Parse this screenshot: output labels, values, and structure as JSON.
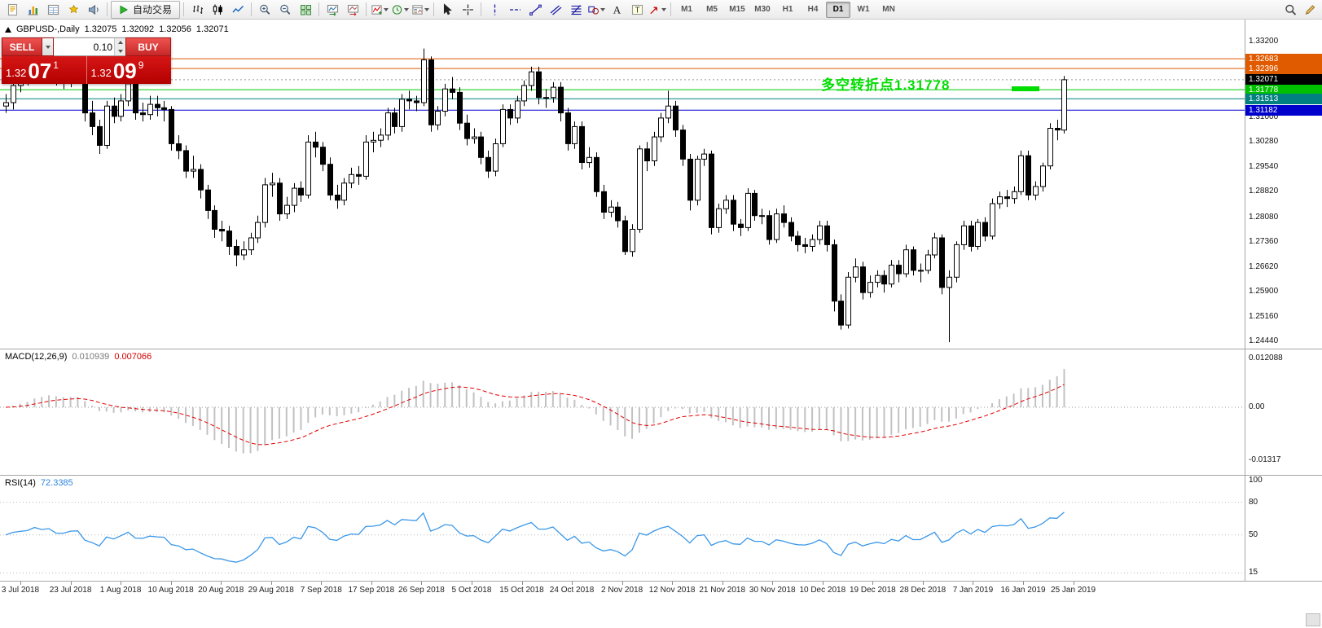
{
  "toolbar": {
    "groups": [
      {
        "items": [
          {
            "name": "new-order-icon",
            "icon": "neworder"
          },
          {
            "name": "market-watch-icon",
            "icon": "marketwatch"
          },
          {
            "name": "data-window-icon",
            "icon": "datawindow"
          },
          {
            "name": "navigator-icon",
            "icon": "navigator"
          },
          {
            "name": "terminal-icon",
            "icon": "terminal"
          }
        ]
      },
      {
        "items": [
          {
            "name": "auto-trading-button",
            "icon": "play",
            "label": "自动交易"
          }
        ]
      },
      {
        "items": [
          {
            "name": "bar-chart-icon",
            "icon": "bars"
          },
          {
            "name": "candlestick-chart-icon",
            "icon": "candles"
          },
          {
            "name": "line-chart-icon",
            "icon": "linechart"
          }
        ]
      },
      {
        "items": [
          {
            "name": "zoom-in-icon",
            "icon": "zoomin"
          },
          {
            "name": "zoom-out-icon",
            "icon": "zoomout"
          },
          {
            "name": "tile-windows-icon",
            "icon": "grid"
          }
        ]
      },
      {
        "items": [
          {
            "name": "auto-scroll-icon",
            "icon": "autoscroll"
          },
          {
            "name": "chart-shift-icon",
            "icon": "shift"
          }
        ]
      },
      {
        "items": [
          {
            "name": "indicators-icon",
            "icon": "indicators",
            "dd": true
          },
          {
            "name": "periods-clock-icon",
            "icon": "clock",
            "dd": true
          },
          {
            "name": "templates-icon",
            "icon": "templates",
            "dd": true
          }
        ]
      },
      {
        "items": [
          {
            "name": "cursor-icon",
            "icon": "cursor"
          },
          {
            "name": "crosshair-icon",
            "icon": "crosshair"
          }
        ]
      },
      {
        "items": [
          {
            "name": "vertical-line-icon",
            "icon": "vline"
          },
          {
            "name": "horizontal-line-icon",
            "icon": "hline"
          },
          {
            "name": "trendline-icon",
            "icon": "trendline"
          },
          {
            "name": "channel-icon",
            "icon": "channel"
          },
          {
            "name": "fibonacci-icon",
            "icon": "fibo"
          },
          {
            "name": "shapes-icon",
            "icon": "shapes",
            "dd": true
          },
          {
            "name": "text-icon",
            "icon": "texta"
          },
          {
            "name": "text-label-icon",
            "icon": "textlabel"
          },
          {
            "name": "arrows-icon",
            "icon": "arrows",
            "dd": true
          }
        ]
      }
    ],
    "timeframes": [
      "M1",
      "M5",
      "M15",
      "M30",
      "H1",
      "H4",
      "D1",
      "W1",
      "MN"
    ],
    "active_timeframe": "D1",
    "right_items": [
      {
        "name": "search-icon",
        "icon": "search"
      },
      {
        "name": "edit-icon",
        "icon": "edit"
      }
    ]
  },
  "chart": {
    "title": {
      "symbol_period": "GBPUSD-,Daily",
      "open": "1.32075",
      "high": "1.32092",
      "low": "1.32056",
      "close": "1.32071"
    },
    "annotation": {
      "text": "多空转折点1.31778",
      "color": "#00dd00"
    },
    "axis_labels": [
      "1.33200",
      "1.31000",
      "1.30280",
      "1.29540",
      "1.28820",
      "1.28080",
      "1.27360",
      "1.26620",
      "1.25900",
      "1.25160",
      "1.24440"
    ],
    "price_tags": [
      {
        "price": 1.32683,
        "label": "1.32683",
        "color": "#e05a00"
      },
      {
        "price": 1.32396,
        "label": "1.32396",
        "color": "#e05a00"
      },
      {
        "price": 1.32071,
        "label": "1.32071",
        "color": "#000000"
      },
      {
        "price": 1.31778,
        "label": "1.31778",
        "color": "#00c000"
      },
      {
        "price": 1.31513,
        "label": "1.31513",
        "color": "#008080"
      },
      {
        "price": 1.31182,
        "label": "1.31182",
        "color": "#0000cd"
      }
    ],
    "hlines": [
      {
        "price": 1.32683,
        "color": "#e05a00",
        "style": "solid"
      },
      {
        "price": 1.32396,
        "color": "#e05a00",
        "style": "solid"
      },
      {
        "price": 1.32071,
        "color": "#999999",
        "style": "dotted"
      },
      {
        "price": 1.31778,
        "color": "#00cc00",
        "style": "solid"
      },
      {
        "price": 1.31513,
        "color": "#008080",
        "style": "solid"
      },
      {
        "price": 1.31182,
        "color": "#0000cd",
        "style": "solid"
      }
    ]
  },
  "trade_panel": {
    "sell_label": "SELL",
    "buy_label": "BUY",
    "lot_value": "0.10",
    "sell_price_prefix": "1.32",
    "sell_price_big": "07",
    "sell_price_sup": "1",
    "buy_price_prefix": "1.32",
    "buy_price_big": "09",
    "buy_price_sup": "9"
  },
  "macd": {
    "label": "MACD(12,26,9)",
    "main_value": "0.010939",
    "signal_value": "0.007066",
    "axis_labels": [
      "0.012088",
      "0.00",
      "-0.01317"
    ]
  },
  "rsi": {
    "label": "RSI(14)",
    "value": "72.3385",
    "axis_labels": [
      "100",
      "80",
      "50",
      "15"
    ],
    "levels": [
      80,
      50,
      15
    ]
  },
  "dates": [
    "3 Jul 2018",
    "23 Jul 2018",
    "1 Aug 2018",
    "10 Aug 2018",
    "20 Aug 2018",
    "29 Aug 2018",
    "7 Sep 2018",
    "17 Sep 2018",
    "26 Sep 2018",
    "5 Oct 2018",
    "15 Oct 2018",
    "24 Oct 2018",
    "2 Nov 2018",
    "12 Nov 2018",
    "21 Nov 2018",
    "30 Nov 2018",
    "10 Dec 2018",
    "19 Dec 2018",
    "28 Dec 2018",
    "7 Jan 2019",
    "16 Jan 2019",
    "25 Jan 2019"
  ],
  "chart_data": {
    "type": "candlestick",
    "symbol": "GBPUSD-",
    "period": "Daily",
    "ohlc_header": {
      "open": 1.32075,
      "high": 1.32092,
      "low": 1.32056,
      "close": 1.32071
    },
    "price_range_shown": [
      1.2444,
      1.332
    ],
    "indicators": [
      {
        "name": "MACD",
        "params": "12,26,9",
        "values_shown": [
          0.010939,
          0.007066
        ],
        "axis_range": [
          -0.01317,
          0.012088
        ]
      },
      {
        "name": "RSI",
        "params": "14",
        "value_shown": 72.3385,
        "levels": [
          80,
          50,
          15
        ]
      }
    ],
    "candles": [
      [
        1.313,
        1.3165,
        1.311,
        1.314
      ],
      [
        1.314,
        1.3205,
        1.312,
        1.319
      ],
      [
        1.319,
        1.324,
        1.317,
        1.321
      ],
      [
        1.321,
        1.325,
        1.319,
        1.3225
      ],
      [
        1.3225,
        1.3315,
        1.3205,
        1.3285
      ],
      [
        1.3285,
        1.33,
        1.3235,
        1.3255
      ],
      [
        1.3255,
        1.3295,
        1.324,
        1.327
      ],
      [
        1.327,
        1.3285,
        1.319,
        1.3205
      ],
      [
        1.3205,
        1.324,
        1.318,
        1.3205
      ],
      [
        1.3205,
        1.326,
        1.3185,
        1.3235
      ],
      [
        1.3235,
        1.327,
        1.3215,
        1.324
      ],
      [
        1.324,
        1.3255,
        1.3085,
        1.311
      ],
      [
        1.311,
        1.3145,
        1.3045,
        1.307
      ],
      [
        1.307,
        1.309,
        1.299,
        1.3015
      ],
      [
        1.3015,
        1.3145,
        1.3005,
        1.313
      ],
      [
        1.313,
        1.3155,
        1.308,
        1.31
      ],
      [
        1.31,
        1.3165,
        1.3085,
        1.3145
      ],
      [
        1.3145,
        1.3215,
        1.313,
        1.3195
      ],
      [
        1.3195,
        1.3215,
        1.309,
        1.311
      ],
      [
        1.311,
        1.314,
        1.3085,
        1.3105
      ],
      [
        1.3105,
        1.316,
        1.309,
        1.3135
      ],
      [
        1.3135,
        1.316,
        1.31,
        1.3125
      ],
      [
        1.3125,
        1.3145,
        1.3085,
        1.312
      ],
      [
        1.312,
        1.313,
        1.3,
        1.302
      ],
      [
        1.302,
        1.3045,
        1.2975,
        1.3
      ],
      [
        1.3,
        1.3015,
        1.292,
        1.294
      ],
      [
        1.294,
        1.2985,
        1.292,
        1.2945
      ],
      [
        1.2945,
        1.296,
        1.286,
        1.2885
      ],
      [
        1.2885,
        1.29,
        1.28,
        1.2825
      ],
      [
        1.2825,
        1.284,
        1.2745,
        1.277
      ],
      [
        1.277,
        1.2795,
        1.2735,
        1.2765
      ],
      [
        1.2765,
        1.278,
        1.2695,
        1.272
      ],
      [
        1.272,
        1.274,
        1.2662,
        1.2695
      ],
      [
        1.2695,
        1.2735,
        1.268,
        1.271
      ],
      [
        1.271,
        1.276,
        1.2695,
        1.2745
      ],
      [
        1.2745,
        1.281,
        1.273,
        1.279
      ],
      [
        1.279,
        1.292,
        1.2775,
        1.29
      ],
      [
        1.29,
        1.2935,
        1.2865,
        1.2905
      ],
      [
        1.2905,
        1.292,
        1.2795,
        1.2815
      ],
      [
        1.2815,
        1.2865,
        1.28,
        1.284
      ],
      [
        1.284,
        1.2905,
        1.282,
        1.289
      ],
      [
        1.289,
        1.291,
        1.285,
        1.287
      ],
      [
        1.287,
        1.3045,
        1.286,
        1.3025
      ],
      [
        1.3025,
        1.3055,
        1.298,
        1.301
      ],
      [
        1.301,
        1.3025,
        1.294,
        1.296
      ],
      [
        1.296,
        1.298,
        1.2855,
        1.287
      ],
      [
        1.287,
        1.29,
        1.283,
        1.2855
      ],
      [
        1.2855,
        1.292,
        1.284,
        1.2905
      ],
      [
        1.2905,
        1.295,
        1.289,
        1.293
      ],
      [
        1.293,
        1.2955,
        1.29,
        1.2925
      ],
      [
        1.2925,
        1.3045,
        1.2915,
        1.3025
      ],
      [
        1.3025,
        1.3055,
        1.2995,
        1.303
      ],
      [
        1.303,
        1.3065,
        1.301,
        1.3045
      ],
      [
        1.3045,
        1.3125,
        1.303,
        1.311
      ],
      [
        1.311,
        1.3125,
        1.305,
        1.307
      ],
      [
        1.307,
        1.3165,
        1.3055,
        1.315
      ],
      [
        1.315,
        1.3175,
        1.312,
        1.3145
      ],
      [
        1.3145,
        1.316,
        1.3115,
        1.314
      ],
      [
        1.314,
        1.3298,
        1.313,
        1.3265
      ],
      [
        1.3265,
        1.3275,
        1.3055,
        1.3075
      ],
      [
        1.3075,
        1.313,
        1.306,
        1.3115
      ],
      [
        1.3115,
        1.3195,
        1.31,
        1.318
      ],
      [
        1.318,
        1.3215,
        1.315,
        1.317
      ],
      [
        1.317,
        1.3185,
        1.306,
        1.308
      ],
      [
        1.308,
        1.3105,
        1.3015,
        1.3035
      ],
      [
        1.3035,
        1.3065,
        1.302,
        1.304
      ],
      [
        1.304,
        1.3055,
        1.296,
        1.298
      ],
      [
        1.298,
        1.3,
        1.292,
        1.294
      ],
      [
        1.294,
        1.3035,
        1.2925,
        1.302
      ],
      [
        1.302,
        1.3135,
        1.301,
        1.312
      ],
      [
        1.312,
        1.3135,
        1.3075,
        1.3095
      ],
      [
        1.3095,
        1.316,
        1.308,
        1.3145
      ],
      [
        1.3145,
        1.3205,
        1.313,
        1.319
      ],
      [
        1.319,
        1.3245,
        1.3175,
        1.323
      ],
      [
        1.323,
        1.3245,
        1.3135,
        1.3155
      ],
      [
        1.3155,
        1.318,
        1.3125,
        1.3155
      ],
      [
        1.3155,
        1.32,
        1.314,
        1.3185
      ],
      [
        1.3185,
        1.32,
        1.3085,
        1.311
      ],
      [
        1.311,
        1.3125,
        1.3,
        1.302
      ],
      [
        1.302,
        1.3085,
        1.3005,
        1.307
      ],
      [
        1.307,
        1.3085,
        1.2945,
        1.2965
      ],
      [
        1.2965,
        1.301,
        1.295,
        1.298
      ],
      [
        1.298,
        1.2995,
        1.2865,
        1.288
      ],
      [
        1.288,
        1.29,
        1.28,
        1.282
      ],
      [
        1.282,
        1.2855,
        1.2805,
        1.2835
      ],
      [
        1.2835,
        1.285,
        1.2775,
        1.2795
      ],
      [
        1.2795,
        1.281,
        1.2695,
        1.2705
      ],
      [
        1.2705,
        1.2785,
        1.269,
        1.277
      ],
      [
        1.277,
        1.3015,
        1.276,
        1.3005
      ],
      [
        1.3005,
        1.3025,
        1.294,
        1.297
      ],
      [
        1.297,
        1.3055,
        1.2955,
        1.304
      ],
      [
        1.304,
        1.311,
        1.3025,
        1.3095
      ],
      [
        1.3095,
        1.3175,
        1.308,
        1.313
      ],
      [
        1.313,
        1.3145,
        1.304,
        1.306
      ],
      [
        1.306,
        1.3075,
        1.2955,
        1.2975
      ],
      [
        1.2975,
        1.299,
        1.2825,
        1.2855
      ],
      [
        1.2855,
        1.2985,
        1.284,
        1.2975
      ],
      [
        1.2975,
        1.3005,
        1.2955,
        1.299
      ],
      [
        1.299,
        1.3,
        1.2755,
        1.2775
      ],
      [
        1.2775,
        1.2845,
        1.276,
        1.283
      ],
      [
        1.283,
        1.287,
        1.2815,
        1.2855
      ],
      [
        1.2855,
        1.287,
        1.2765,
        1.2785
      ],
      [
        1.2785,
        1.28,
        1.275,
        1.2775
      ],
      [
        1.2775,
        1.289,
        1.2765,
        1.2875
      ],
      [
        1.2875,
        1.2885,
        1.2795,
        1.281
      ],
      [
        1.281,
        1.283,
        1.2785,
        1.281
      ],
      [
        1.281,
        1.2825,
        1.2725,
        1.274
      ],
      [
        1.274,
        1.283,
        1.273,
        1.2815
      ],
      [
        1.2815,
        1.284,
        1.2775,
        1.279
      ],
      [
        1.279,
        1.2805,
        1.2735,
        1.275
      ],
      [
        1.275,
        1.2765,
        1.2705,
        1.2725
      ],
      [
        1.2725,
        1.2745,
        1.27,
        1.272
      ],
      [
        1.272,
        1.2755,
        1.2705,
        1.274
      ],
      [
        1.274,
        1.2795,
        1.2725,
        1.278
      ],
      [
        1.278,
        1.2795,
        1.2705,
        1.2725
      ],
      [
        1.2725,
        1.274,
        1.253,
        1.256
      ],
      [
        1.256,
        1.258,
        1.2477,
        1.249
      ],
      [
        1.249,
        1.2645,
        1.248,
        1.263
      ],
      [
        1.263,
        1.2685,
        1.2615,
        1.266
      ],
      [
        1.266,
        1.2675,
        1.2565,
        1.2585
      ],
      [
        1.2585,
        1.2635,
        1.257,
        1.2615
      ],
      [
        1.2615,
        1.265,
        1.26,
        1.2635
      ],
      [
        1.2635,
        1.265,
        1.2585,
        1.261
      ],
      [
        1.261,
        1.268,
        1.26,
        1.2665
      ],
      [
        1.2665,
        1.268,
        1.2615,
        1.264
      ],
      [
        1.264,
        1.2725,
        1.263,
        1.271
      ],
      [
        1.271,
        1.272,
        1.2635,
        1.265
      ],
      [
        1.265,
        1.267,
        1.2615,
        1.265
      ],
      [
        1.265,
        1.271,
        1.264,
        1.2695
      ],
      [
        1.2695,
        1.276,
        1.2685,
        1.2745
      ],
      [
        1.2745,
        1.2755,
        1.258,
        1.26
      ],
      [
        1.26,
        1.265,
        1.244,
        1.263
      ],
      [
        1.263,
        1.2735,
        1.2615,
        1.2725
      ],
      [
        1.2725,
        1.2795,
        1.271,
        1.278
      ],
      [
        1.278,
        1.2795,
        1.2705,
        1.272
      ],
      [
        1.272,
        1.28,
        1.271,
        1.279
      ],
      [
        1.279,
        1.2805,
        1.2735,
        1.275
      ],
      [
        1.275,
        1.286,
        1.274,
        1.2845
      ],
      [
        1.2845,
        1.288,
        1.283,
        1.2865
      ],
      [
        1.2865,
        1.2885,
        1.2835,
        1.286
      ],
      [
        1.286,
        1.2895,
        1.2845,
        1.288
      ],
      [
        1.288,
        1.3,
        1.287,
        1.2985
      ],
      [
        1.2985,
        1.3,
        1.2855,
        1.287
      ],
      [
        1.287,
        1.291,
        1.2855,
        1.2895
      ],
      [
        1.2895,
        1.2965,
        1.288,
        1.2955
      ],
      [
        1.2955,
        1.308,
        1.2945,
        1.3065
      ],
      [
        1.3065,
        1.309,
        1.303,
        1.306
      ],
      [
        1.306,
        1.3218,
        1.305,
        1.3207
      ]
    ]
  }
}
